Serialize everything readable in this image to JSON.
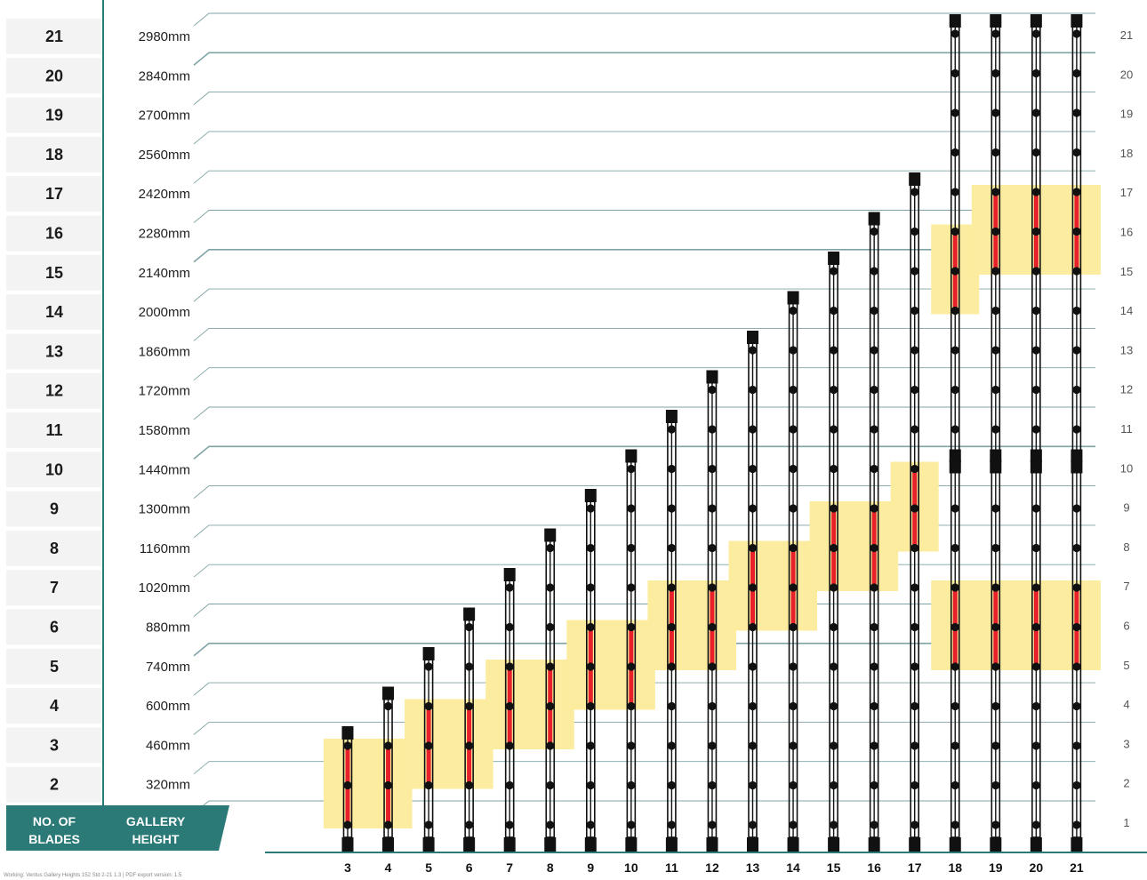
{
  "colors": {
    "teal": "#2c7a78",
    "grid": "#7fa3a4",
    "highlight": "#fcec9f",
    "actuator": "#e8202a",
    "frame": "#111111",
    "row_bg": "#f3f3f3"
  },
  "header": {
    "blades_line1": "NO. OF",
    "blades_line2": "BLADES",
    "height_line1": "GALLERY",
    "height_line2": "HEIGHT"
  },
  "footer": "Working: Ventus Gallery Heights 152 Std 2-21 1.3  |  PDF export version: 1.5",
  "rows": [
    {
      "blades": "21",
      "height": "2980mm"
    },
    {
      "blades": "20",
      "height": "2840mm"
    },
    {
      "blades": "19",
      "height": "2700mm"
    },
    {
      "blades": "18",
      "height": "2560mm"
    },
    {
      "blades": "17",
      "height": "2420mm"
    },
    {
      "blades": "16",
      "height": "2280mm"
    },
    {
      "blades": "15",
      "height": "2140mm"
    },
    {
      "blades": "14",
      "height": "2000mm"
    },
    {
      "blades": "13",
      "height": "1860mm"
    },
    {
      "blades": "12",
      "height": "1720mm"
    },
    {
      "blades": "11",
      "height": "1580mm"
    },
    {
      "blades": "10",
      "height": "1440mm"
    },
    {
      "blades": "9",
      "height": "1300mm"
    },
    {
      "blades": "8",
      "height": "1160mm"
    },
    {
      "blades": "7",
      "height": "1020mm"
    },
    {
      "blades": "6",
      "height": "880mm"
    },
    {
      "blades": "5",
      "height": "740mm"
    },
    {
      "blades": "4",
      "height": "600mm"
    },
    {
      "blades": "3",
      "height": "460mm"
    },
    {
      "blades": "2",
      "height": "320mm"
    }
  ],
  "right_numbers": [
    "21",
    "20",
    "19",
    "18",
    "17",
    "16",
    "15",
    "14",
    "13",
    "12",
    "11",
    "10",
    "9",
    "8",
    "7",
    "6",
    "5",
    "4",
    "3",
    "2",
    "1"
  ],
  "columns": [
    {
      "label": "3",
      "blades": 3,
      "red": [
        [
          1,
          3
        ]
      ]
    },
    {
      "label": "4",
      "blades": 4,
      "red": [
        [
          1,
          3
        ]
      ]
    },
    {
      "label": "5",
      "blades": 5,
      "red": [
        [
          2,
          4
        ]
      ]
    },
    {
      "label": "6",
      "blades": 6,
      "red": [
        [
          2,
          4
        ]
      ]
    },
    {
      "label": "7",
      "blades": 7,
      "red": [
        [
          3,
          5
        ]
      ]
    },
    {
      "label": "8",
      "blades": 8,
      "red": [
        [
          3,
          5
        ]
      ]
    },
    {
      "label": "9",
      "blades": 9,
      "red": [
        [
          4,
          6
        ]
      ]
    },
    {
      "label": "10",
      "blades": 10,
      "red": [
        [
          4,
          6
        ]
      ]
    },
    {
      "label": "11",
      "blades": 11,
      "red": [
        [
          5,
          7
        ]
      ]
    },
    {
      "label": "12",
      "blades": 12,
      "red": [
        [
          5,
          7
        ]
      ]
    },
    {
      "label": "13",
      "blades": 13,
      "red": [
        [
          6,
          8
        ]
      ]
    },
    {
      "label": "14",
      "blades": 14,
      "red": [
        [
          6,
          8
        ]
      ]
    },
    {
      "label": "15",
      "blades": 15,
      "red": [
        [
          7,
          9
        ]
      ]
    },
    {
      "label": "16",
      "blades": 16,
      "red": [
        [
          7,
          9
        ]
      ]
    },
    {
      "label": "17",
      "blades": 17,
      "red": [
        [
          8,
          10
        ]
      ]
    },
    {
      "label": "18",
      "blades": 21,
      "split_after": 10,
      "red": [
        [
          5,
          7
        ],
        [
          14,
          16
        ]
      ]
    },
    {
      "label": "19",
      "blades": 21,
      "split_after": 10,
      "red": [
        [
          5,
          7
        ],
        [
          15,
          17
        ]
      ]
    },
    {
      "label": "20",
      "blades": 21,
      "split_after": 10,
      "red": [
        [
          5,
          7
        ],
        [
          15,
          17
        ]
      ]
    },
    {
      "label": "21",
      "blades": 21,
      "split_after": 10,
      "red": [
        [
          5,
          7
        ],
        [
          15,
          17
        ]
      ]
    }
  ],
  "highlights": [
    {
      "cols": [
        3,
        4
      ],
      "blades": [
        1,
        3
      ]
    },
    {
      "cols": [
        5,
        6
      ],
      "blades": [
        2,
        4
      ]
    },
    {
      "cols": [
        7,
        8
      ],
      "blades": [
        3,
        5
      ]
    },
    {
      "cols": [
        9,
        10
      ],
      "blades": [
        4,
        6
      ]
    },
    {
      "cols": [
        11,
        12
      ],
      "blades": [
        5,
        7
      ]
    },
    {
      "cols": [
        13,
        14
      ],
      "blades": [
        6,
        8
      ]
    },
    {
      "cols": [
        15,
        16
      ],
      "blades": [
        7,
        9
      ]
    },
    {
      "cols": [
        17,
        17
      ],
      "blades": [
        8,
        10
      ]
    },
    {
      "cols": [
        18,
        18
      ],
      "blades": [
        14,
        16
      ]
    },
    {
      "cols": [
        19,
        21
      ],
      "blades": [
        15,
        17
      ]
    },
    {
      "cols": [
        18,
        21
      ],
      "blades": [
        5,
        7
      ]
    }
  ]
}
